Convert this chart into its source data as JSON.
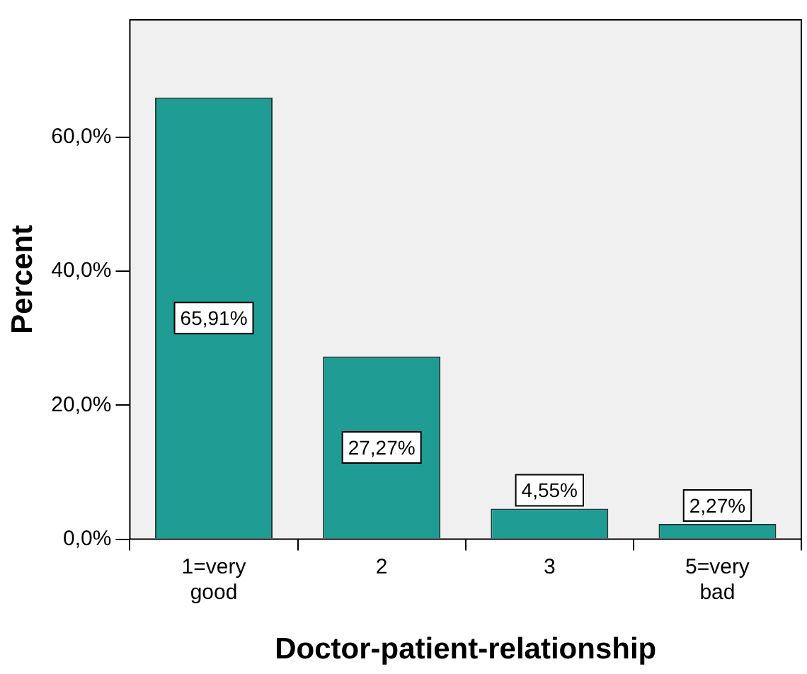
{
  "chart_data": {
    "type": "bar",
    "xlabel": "Doctor-patient-relationship",
    "ylabel": "Percent",
    "categories": [
      "1=very good",
      "2",
      "3",
      "5=very bad"
    ],
    "values": [
      65.91,
      27.27,
      4.55,
      2.27
    ],
    "value_labels": [
      "65,91%",
      "27,27%",
      "4,55%",
      "2,27%"
    ],
    "color": "#1f9c94",
    "ylim": [
      0,
      77.5
    ],
    "yticks": [
      {
        "value": 0,
        "label": "0,0%"
      },
      {
        "value": 20,
        "label": "20,0%"
      },
      {
        "value": 40,
        "label": "40,0%"
      },
      {
        "value": 60,
        "label": "60,0%"
      }
    ],
    "grid": false,
    "legend": false
  }
}
